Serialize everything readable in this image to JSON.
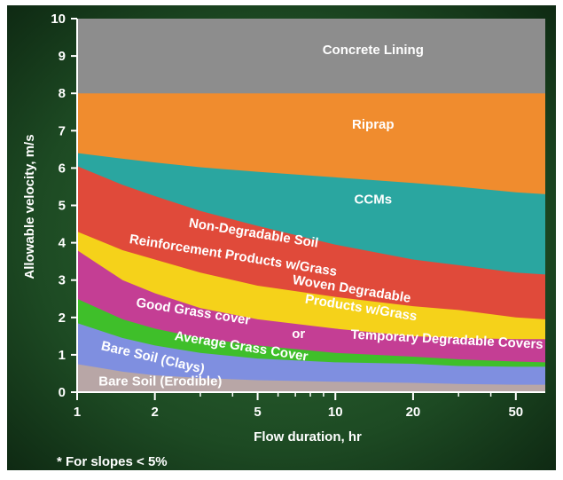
{
  "chart_data": {
    "type": "area",
    "xscale": "log",
    "xlabel": "Flow duration, hr",
    "ylabel": "Allowable velocity, m/s",
    "xlim": [
      1,
      65
    ],
    "ylim": [
      0,
      10
    ],
    "x_ticks": [
      1,
      2,
      5,
      10,
      20,
      50
    ],
    "x_tick_labels": [
      "1",
      "2",
      "5",
      "10",
      "20",
      "50"
    ],
    "y_ticks": [
      0,
      1,
      2,
      3,
      4,
      5,
      6,
      7,
      8,
      9,
      10
    ],
    "y_tick_labels": [
      "0",
      "1",
      "2",
      "3",
      "4",
      "5",
      "6",
      "7",
      "8",
      "9",
      "10"
    ],
    "footnote": "* For slopes < 5%",
    "x": [
      1,
      1.5,
      2,
      3,
      5,
      10,
      20,
      30,
      50,
      65
    ],
    "series": [
      {
        "name": "Bare Soil (Erodible)",
        "color": "#b8a6a6",
        "upper": [
          0.75,
          0.55,
          0.45,
          0.38,
          0.32,
          0.28,
          0.25,
          0.22,
          0.2,
          0.2
        ]
      },
      {
        "name": "Bare Soil (Clays)",
        "color": "#7f8fe0",
        "upper": [
          1.85,
          1.45,
          1.25,
          1.05,
          0.9,
          0.8,
          0.76,
          0.7,
          0.68,
          0.68
        ]
      },
      {
        "name": "Average Grass Cover",
        "color": "#3fbf2a",
        "upper": [
          2.5,
          1.95,
          1.7,
          1.45,
          1.25,
          1.05,
          0.95,
          0.88,
          0.82,
          0.8
        ]
      },
      {
        "name": "Good Grass cover or Temporary Degradable Covers",
        "color": "#c43e94",
        "upper": [
          3.8,
          3.0,
          2.65,
          2.25,
          1.95,
          1.7,
          1.5,
          1.45,
          1.42,
          1.42
        ]
      },
      {
        "name": "Woven Degradable Products w/Grass",
        "color": "#f5d21a",
        "upper": [
          4.3,
          3.8,
          3.55,
          3.2,
          2.85,
          2.55,
          2.3,
          2.2,
          2.0,
          1.95
        ]
      },
      {
        "name": "Non-Degradable Soil Reinforcement Products w/Grass",
        "color": "#e04a3a",
        "upper": [
          6.05,
          5.55,
          5.25,
          4.85,
          4.45,
          3.95,
          3.55,
          3.4,
          3.2,
          3.15
        ]
      },
      {
        "name": "CCMs",
        "color": "#2aa6a0",
        "upper": [
          6.4,
          6.25,
          6.15,
          6.02,
          5.9,
          5.75,
          5.6,
          5.5,
          5.35,
          5.3
        ]
      },
      {
        "name": "Riprap",
        "color": "#f08c2e",
        "upper": [
          8,
          8,
          8,
          8,
          8,
          8,
          8,
          8,
          8,
          8
        ]
      },
      {
        "name": "Concrete Lining",
        "color": "#8d8d8d",
        "upper": [
          10,
          10,
          10,
          10,
          10,
          10,
          10,
          10,
          10,
          10
        ]
      }
    ],
    "annotations": [
      {
        "text": "Concrete Lining",
        "x": 14,
        "y": 9.05,
        "rotate": 0
      },
      {
        "text": "Riprap",
        "x": 14,
        "y": 7.05,
        "rotate": 0
      },
      {
        "text": "CCMs",
        "x": 14,
        "y": 5.05,
        "rotate": 0
      },
      {
        "text": "Non-Degradable Soil",
        "x": 4.8,
        "y": 4.15,
        "rotate": 9
      },
      {
        "text": "Reinforcement Products w/Grass",
        "x": 4.0,
        "y": 3.55,
        "rotate": 9
      },
      {
        "text": "Woven Degradable",
        "x": 11.5,
        "y": 2.65,
        "rotate": 9
      },
      {
        "text": "Products w/Grass",
        "x": 12.5,
        "y": 2.15,
        "rotate": 9
      },
      {
        "text": "Good Grass cover",
        "x": 2.8,
        "y": 2.05,
        "rotate": 9
      },
      {
        "text": "or",
        "x": 7.2,
        "y": 1.45,
        "rotate": 0
      },
      {
        "text": "Temporary Degradable Covers",
        "x": 27,
        "y": 1.3,
        "rotate": 3
      },
      {
        "text": "Average Grass Cover",
        "x": 4.3,
        "y": 1.12,
        "rotate": 9
      },
      {
        "text": "Bare Soil (Clays)",
        "x": 1.95,
        "y": 0.82,
        "rotate": 13
      },
      {
        "text": "Bare Soil (Erodible)",
        "x": 2.1,
        "y": 0.18,
        "rotate": 0
      }
    ]
  }
}
